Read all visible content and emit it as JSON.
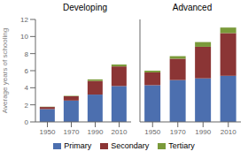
{
  "chart_data": [
    {
      "type": "bar",
      "title": "Developing",
      "ylabel": "Average years of schooling",
      "categories": [
        "1950",
        "1970",
        "1990",
        "2010"
      ],
      "series": [
        {
          "name": "Primary",
          "color": "#4C6FAF",
          "values": [
            1.5,
            2.5,
            3.2,
            4.2
          ]
        },
        {
          "name": "Secondary",
          "color": "#8B3535",
          "values": [
            0.25,
            0.5,
            1.6,
            2.3
          ]
        },
        {
          "name": "Tertiary",
          "color": "#7A9A3A",
          "values": [
            0.03,
            0.05,
            0.18,
            0.22
          ]
        }
      ],
      "ylim": [
        0,
        12
      ],
      "yticks": [
        0,
        2,
        4,
        6,
        8,
        10,
        12
      ],
      "stacked": true,
      "grid": false,
      "legend": "bottom"
    },
    {
      "type": "bar",
      "title": "Advanced",
      "categories": [
        "1950",
        "1970",
        "1990",
        "2010"
      ],
      "series": [
        {
          "name": "Primary",
          "color": "#4C6FAF",
          "values": [
            4.3,
            4.9,
            5.1,
            5.4
          ]
        },
        {
          "name": "Secondary",
          "color": "#8B3535",
          "values": [
            1.5,
            2.5,
            3.7,
            5.0
          ]
        },
        {
          "name": "Tertiary",
          "color": "#7A9A3A",
          "values": [
            0.2,
            0.3,
            0.55,
            0.65
          ]
        }
      ],
      "ylim": [
        0,
        12
      ],
      "yticks": [
        0,
        2,
        4,
        6,
        8,
        10,
        12
      ],
      "stacked": true,
      "grid": false,
      "tick_labels": "x"
    }
  ]
}
